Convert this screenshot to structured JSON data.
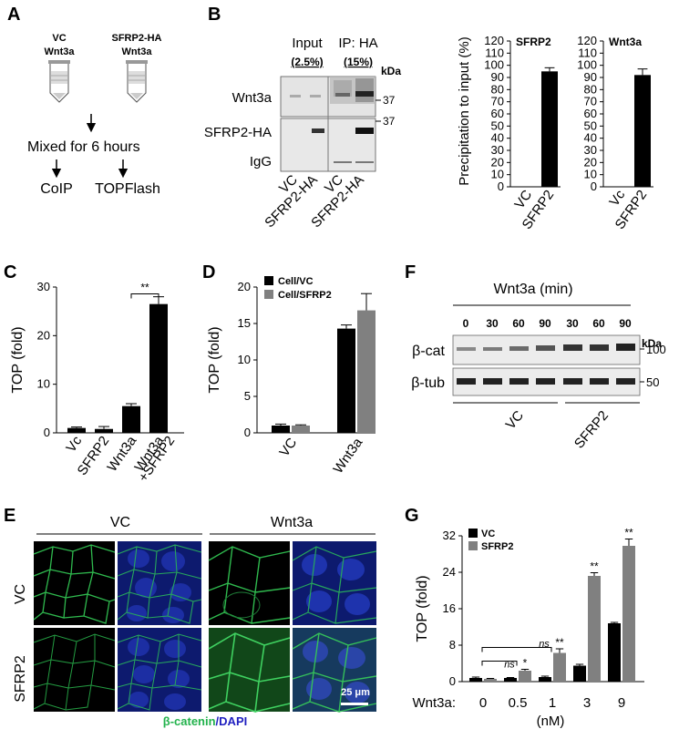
{
  "figure": {
    "panel_letters": [
      "A",
      "B",
      "C",
      "D",
      "E",
      "F",
      "G"
    ]
  },
  "panel_a": {
    "tube1_line1": "VC",
    "tube1_line2": "Wnt3a",
    "tube2_line1": "SFRP2-HA",
    "tube2_line2": "Wnt3a",
    "mix_text": "Mixed for 6 hours",
    "left_out": "CoIP",
    "right_out": "TOPFlash"
  },
  "panel_b_blot": {
    "input_label": "Input",
    "input_pct": "(2.5%)",
    "ip_label": "IP: HA",
    "ip_pct": "(15%)",
    "kda": "kDa",
    "rows": [
      "Wnt3a",
      "SFRP2-HA",
      "IgG"
    ],
    "markers": [
      "37",
      "37"
    ],
    "lanes": [
      "VC",
      "SFRP2-HA",
      "VC",
      "SFRP2-HA"
    ]
  },
  "panel_b_charts": {
    "ylabel": "Precipitation to input (%)",
    "yticks": [
      "0",
      "10",
      "20",
      "30",
      "40",
      "50",
      "60",
      "70",
      "80",
      "90",
      "100",
      "110",
      "120"
    ]
  },
  "panel_d_legend": [
    "Cell/VC",
    "Cell/SFRP2"
  ],
  "panel_f": {
    "header": "Wnt3a (min)",
    "timepoints": [
      "0",
      "30",
      "60",
      "90",
      "30",
      "60",
      "90"
    ],
    "kda": "kDa",
    "rows": [
      "β-cat",
      "β-tub"
    ],
    "markers": [
      "100",
      "50"
    ],
    "groups": [
      "VC",
      "SFRP2"
    ]
  },
  "panel_e": {
    "col_groups": [
      "VC",
      "Wnt3a"
    ],
    "row_labels": [
      "VC",
      "SFRP2"
    ],
    "scale": "25 μm",
    "legend_catenin": "β-catenin",
    "legend_sep": "/",
    "legend_dapi": "DAPI"
  },
  "panel_g": {
    "x_prefix": "Wnt3a:",
    "x_unit": "(nM)",
    "ns": "ns"
  },
  "colors": {
    "black_bar": "#000000",
    "grey_bar": "#808080",
    "green": "#22b24c",
    "blue": "#2020c0"
  },
  "chart_data": [
    {
      "id": "B-SFRP2",
      "type": "bar",
      "title": "SFRP2",
      "categories": [
        "VC",
        "SFRP2"
      ],
      "values": [
        0,
        95
      ],
      "errors": [
        0,
        3
      ],
      "ylim": [
        0,
        120
      ],
      "ylabel": "Precipitation to input (%)"
    },
    {
      "id": "B-Wnt3a",
      "type": "bar",
      "title": "Wnt3a",
      "categories": [
        "Vc",
        "SFRP2"
      ],
      "values": [
        0,
        92
      ],
      "errors": [
        0,
        5
      ],
      "ylim": [
        0,
        120
      ]
    },
    {
      "id": "C",
      "type": "bar",
      "categories": [
        "Vc",
        "SFRP2",
        "Wnt3a",
        "Wnt3a\n+SFRP2"
      ],
      "values": [
        1,
        0.8,
        5.5,
        26.5
      ],
      "errors": [
        0.2,
        0.5,
        0.5,
        1.5
      ],
      "ylim": [
        0,
        30
      ],
      "yticks": [
        0,
        10,
        20,
        30
      ],
      "ylabel": "TOP (fold)",
      "significance": [
        {
          "from": 2,
          "to": 3,
          "label": "**"
        }
      ]
    },
    {
      "id": "D",
      "type": "bar",
      "categories": [
        "VC",
        "Wnt3a"
      ],
      "series": [
        {
          "name": "Cell/VC",
          "values": [
            1,
            14.3
          ],
          "errors": [
            0.2,
            0.5
          ]
        },
        {
          "name": "Cell/SFRP2",
          "values": [
            1,
            16.8
          ],
          "errors": [
            0.1,
            2.3
          ]
        }
      ],
      "ylim": [
        0,
        20
      ],
      "yticks": [
        0,
        5,
        10,
        15,
        20
      ],
      "ylabel": "TOP (fold)"
    },
    {
      "id": "G",
      "type": "bar",
      "categories": [
        "0",
        "0.5",
        "1",
        "3",
        "9"
      ],
      "series": [
        {
          "name": "VC",
          "values": [
            0.8,
            0.8,
            1,
            3.5,
            12.8
          ],
          "errors": [
            0.2,
            0.1,
            0.2,
            0.3,
            0.2
          ]
        },
        {
          "name": "SFRP2",
          "values": [
            0.6,
            2.4,
            6.3,
            23.2,
            29.8
          ],
          "errors": [
            0.1,
            0.3,
            0.9,
            0.7,
            1.5
          ]
        }
      ],
      "annotations": [
        "",
        "*",
        "**",
        "**",
        "**"
      ],
      "ns_annotations": [
        "",
        "ns",
        "ns",
        "",
        ""
      ],
      "ylim": [
        0,
        32
      ],
      "yticks": [
        0,
        8,
        16,
        24,
        32
      ],
      "ylabel": "TOP (fold)"
    }
  ]
}
